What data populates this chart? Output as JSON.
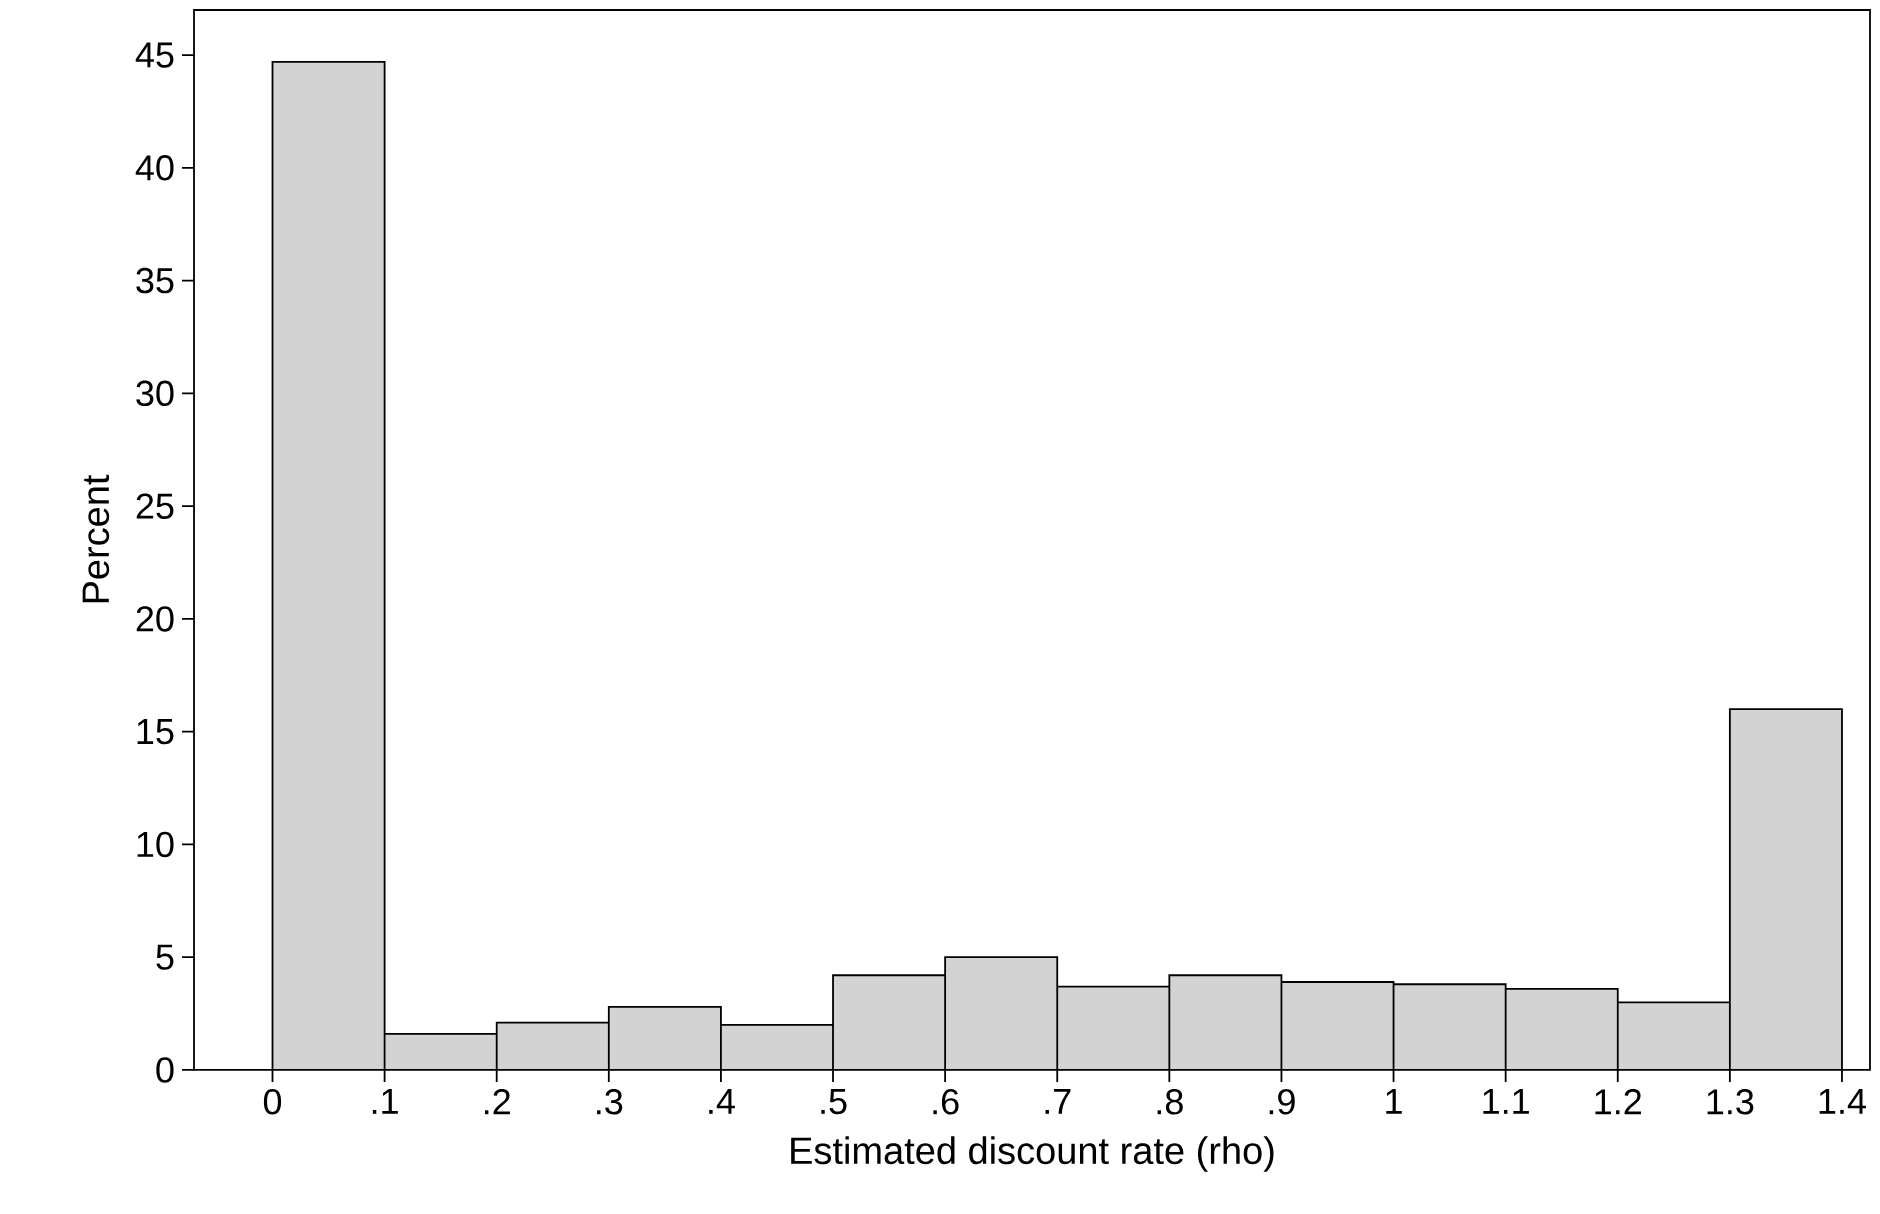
{
  "chart_data": {
    "type": "histogram",
    "xlabel": "Estimated discount rate (rho)",
    "ylabel": "Percent",
    "bins": [
      0,
      0.1,
      0.2,
      0.3,
      0.4,
      0.5,
      0.6,
      0.7,
      0.8,
      0.9,
      1.0,
      1.1,
      1.2,
      1.3,
      1.4
    ],
    "values": [
      44.7,
      1.6,
      2.1,
      2.8,
      2.0,
      4.2,
      5.0,
      3.7,
      4.2,
      3.9,
      3.8,
      3.6,
      3.0,
      16.0
    ],
    "color": "#d3d3d3",
    "xlim": [
      -0.07,
      1.425
    ],
    "ylim": [
      0,
      47
    ],
    "xticks": [
      0,
      {
        "value": 0.1,
        "label": ".1"
      },
      {
        "value": 0.2,
        "label": ".2"
      },
      {
        "value": 0.3,
        "label": ".3"
      },
      {
        "value": 0.4,
        "label": ".4"
      },
      {
        "value": 0.5,
        "label": ".5"
      },
      {
        "value": 0.6,
        "label": ".6"
      },
      {
        "value": 0.7,
        "label": ".7"
      },
      {
        "value": 0.8,
        "label": ".8"
      },
      {
        "value": 0.9,
        "label": ".9"
      },
      1,
      1.1,
      1.2,
      1.3,
      1.4
    ],
    "yticks": [
      0,
      5,
      10,
      15,
      20,
      25,
      30,
      35,
      40,
      45
    ]
  }
}
